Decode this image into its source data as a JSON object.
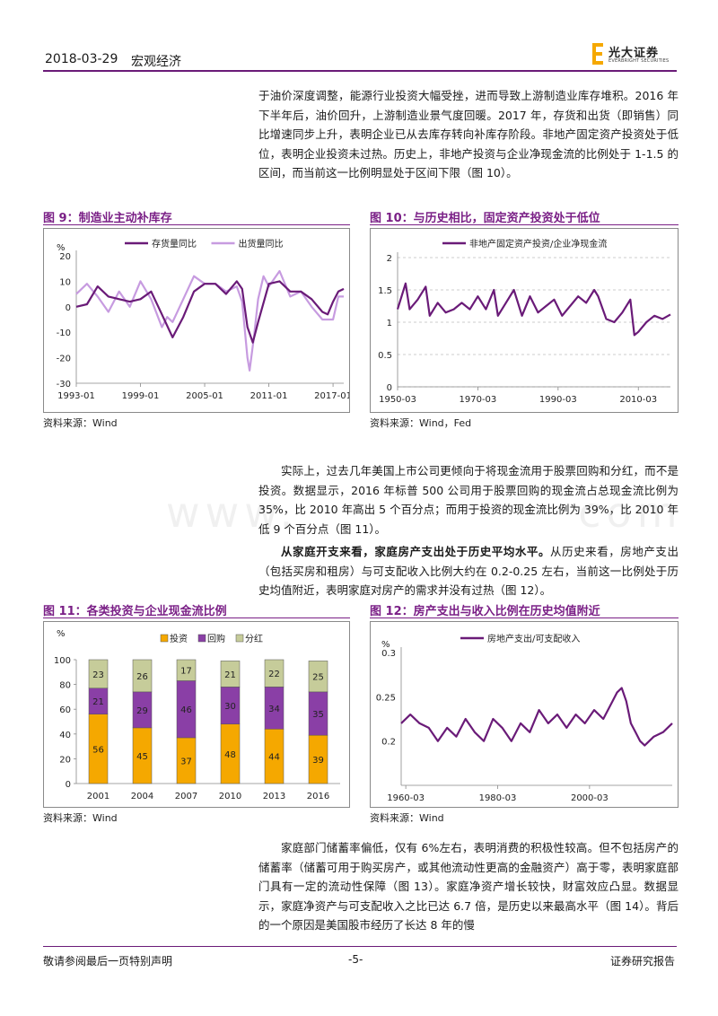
{
  "header": {
    "date": "2018-03-29",
    "section": "宏观经济",
    "logo_cn": "光大证券",
    "logo_en": "EVERBRIGHT SECURITIES"
  },
  "paragraphs": {
    "p1": "于油价深度调整，能源行业投资大幅受挫，进而导致上游制造业库存堆积。2016 年下半年后，油价回升，上游制造业景气度回暖。2017 年，存货和出货（即销售）同比增速同步上升，表明企业已从去库存转向补库存阶段。非地产固定资产投资处于低位，表明企业投资未过热。历史上，非地产投资与企业净现金流的比例处于 1-1.5 的区间，而当前这一比例明显处于区间下限（图 10）。",
    "p2": "实际上，过去几年美国上市公司更倾向于将现金流用于股票回购和分红，而不是投资。数据显示，2016 年标普 500 公司用于股票回购的现金流占总现金流比例为 35%，比 2010 年高出 5 个百分点；而用于投资的现金流比例为 39%，比 2010 年低 9 个百分点（图 11）。",
    "p3_bold": "从家庭开支来看，家庭房产支出处于历史平均水平。",
    "p3_rest": "从历史来看，房地产支出（包括买房和租房）与可支配收入比例大约在 0.2-0.25 左右，当前这一比例处于历史均值附近，表明家庭对房产的需求并没有过热（图 12）。",
    "p4": "家庭部门储蓄率偏低，仅有 6%左右，表明消费的积极性较高。但不包括房产的储蓄率（储蓄可用于购买房产，或其他流动性更高的金融资产）高于零，表明家庭部门具有一定的流动性保障（图 13）。家庭净资产增长较快，财富效应凸显。数据显示，家庭净资产与可支配收入之比已达 6.7 倍，是历史以来最高水平（图 14）。背后的一个原因是美国股市经历了长达 8 年的慢"
  },
  "watermark": "www.             com",
  "figures": {
    "fig9": {
      "title": "图 9：制造业主动补库存",
      "source": "资料来源：Wind"
    },
    "fig10": {
      "title": "图 10：与历史相比，固定资产投资处于低位",
      "source": "资料来源：Wind，Fed"
    },
    "fig11": {
      "title": "图 11：各类投资与企业现金流比例",
      "source": "资料来源：Wind"
    },
    "fig12": {
      "title": "图 12：房产支出与收入比例在历史均值附近",
      "source": "资料来源：Wind"
    }
  },
  "chart_data": [
    {
      "id": "fig9",
      "type": "line",
      "ylabel": "%",
      "ylim": [
        -30,
        20
      ],
      "yticks": [
        -30,
        -20,
        -10,
        0,
        10,
        20
      ],
      "xticks": [
        "1993-01",
        "1999-01",
        "2005-01",
        "2011-01",
        "2017-01"
      ],
      "xrange": [
        1993,
        2018
      ],
      "legend": "top",
      "colors": {
        "存货量同比": "#6a1b78",
        "出货量同比": "#c79be0"
      },
      "series": [
        {
          "name": "存货量同比",
          "x": [
            1993,
            1994,
            1995,
            1996,
            1997,
            1998,
            1999,
            2000,
            2001,
            2002,
            2003,
            2004,
            2005,
            2006,
            2007,
            2008,
            2008.5,
            2009,
            2009.5,
            2010,
            2011,
            2012,
            2013,
            2014,
            2015,
            2016,
            2016.5,
            2017,
            2017.5,
            2018
          ],
          "y": [
            0,
            1,
            8,
            4,
            3,
            2,
            3,
            6,
            -3,
            -12,
            -4,
            6,
            9,
            9,
            5,
            10,
            7,
            -8,
            -14,
            -6,
            9,
            10,
            6,
            6,
            3,
            -2,
            -3,
            2,
            6,
            7
          ]
        },
        {
          "name": "出货量同比",
          "x": [
            1993,
            1994,
            1995,
            1996,
            1997,
            1998,
            1999,
            2000,
            2001,
            2001.5,
            2002,
            2003,
            2004,
            2005,
            2006,
            2007,
            2008,
            2008.5,
            2009,
            2009.2,
            2009.6,
            2010,
            2010.5,
            2011,
            2012,
            2013,
            2014,
            2015,
            2016,
            2017,
            2017.5,
            2018
          ],
          "y": [
            5,
            9,
            4,
            -2,
            6,
            0,
            10,
            3,
            -8,
            -4,
            -6,
            3,
            12,
            9,
            9,
            6,
            8,
            2,
            -20,
            -25,
            -12,
            3,
            12,
            8,
            14,
            4,
            6,
            0,
            -5,
            -5,
            4,
            4
          ]
        }
      ]
    },
    {
      "id": "fig10",
      "type": "line",
      "ylim": [
        0,
        2
      ],
      "yticks": [
        0,
        0.5,
        1,
        1.5,
        2
      ],
      "xticks": [
        "1950-03",
        "1970-03",
        "1990-03",
        "2010-03"
      ],
      "xrange": [
        1950,
        2018
      ],
      "legend": "top",
      "colors": {
        "非地产固定资产投资/企业净现金流": "#6a1b78"
      },
      "series": [
        {
          "name": "非地产固定资产投资/企业净现金流",
          "x": [
            1950,
            1952,
            1953,
            1955,
            1957,
            1958,
            1960,
            1962,
            1964,
            1966,
            1968,
            1970,
            1972,
            1974,
            1975,
            1977,
            1979,
            1981,
            1983,
            1985,
            1987,
            1989,
            1991,
            1993,
            1995,
            1997,
            1999,
            2000,
            2002,
            2004,
            2006,
            2008,
            2009,
            2010,
            2012,
            2014,
            2016,
            2018
          ],
          "y": [
            1.2,
            1.6,
            1.2,
            1.35,
            1.55,
            1.1,
            1.3,
            1.15,
            1.2,
            1.3,
            1.2,
            1.4,
            1.2,
            1.5,
            1.1,
            1.3,
            1.5,
            1.1,
            1.4,
            1.15,
            1.25,
            1.35,
            1.1,
            1.25,
            1.4,
            1.3,
            1.5,
            1.4,
            1.05,
            1.0,
            1.15,
            1.35,
            0.8,
            0.85,
            1.0,
            1.1,
            1.05,
            1.12
          ]
        }
      ]
    },
    {
      "id": "fig11",
      "type": "bar",
      "stacked": true,
      "ylabel": "%",
      "ylim": [
        0,
        100
      ],
      "yticks": [
        0,
        20,
        40,
        60,
        80,
        100
      ],
      "categories": [
        "2001",
        "2004",
        "2007",
        "2010",
        "2013",
        "2016"
      ],
      "legend": "top",
      "series": [
        {
          "name": "投资",
          "color": "#f5a800",
          "values": [
            56,
            45,
            37,
            48,
            44,
            39
          ]
        },
        {
          "name": "回购",
          "color": "#8a3fa6",
          "values": [
            21,
            29,
            46,
            30,
            34,
            35
          ]
        },
        {
          "name": "分红",
          "color": "#c6cc9a",
          "values": [
            23,
            26,
            17,
            21,
            22,
            25
          ]
        }
      ]
    },
    {
      "id": "fig12",
      "type": "line",
      "ylabel": "%",
      "ylim": [
        0.15,
        0.3
      ],
      "yticks": [
        0.2,
        0.25,
        0.3
      ],
      "ytick_labels": [
        "0.2",
        "0.25",
        "0.3"
      ],
      "xticks": [
        "1960-03",
        "1980-03",
        "2000-03"
      ],
      "xrange": [
        1959,
        2018
      ],
      "legend": "top",
      "colors": {
        "房地产支出/可支配收入": "#6a1b78"
      },
      "series": [
        {
          "name": "房地产支出/可支配收入",
          "x": [
            1959,
            1961,
            1963,
            1965,
            1967,
            1969,
            1971,
            1973,
            1975,
            1977,
            1979,
            1981,
            1983,
            1985,
            1987,
            1989,
            1991,
            1993,
            1995,
            1997,
            1999,
            2001,
            2003,
            2005,
            2006,
            2007,
            2008,
            2009,
            2010,
            2011,
            2012,
            2014,
            2016,
            2018
          ],
          "y": [
            0.22,
            0.23,
            0.22,
            0.215,
            0.2,
            0.215,
            0.205,
            0.225,
            0.21,
            0.2,
            0.225,
            0.215,
            0.2,
            0.22,
            0.21,
            0.235,
            0.22,
            0.23,
            0.215,
            0.23,
            0.22,
            0.235,
            0.225,
            0.245,
            0.255,
            0.26,
            0.245,
            0.22,
            0.21,
            0.2,
            0.195,
            0.205,
            0.21,
            0.22
          ]
        }
      ]
    }
  ],
  "footer": {
    "left": "敬请参阅最后一页特别声明",
    "center": "-5-",
    "right": "证券研究报告"
  }
}
